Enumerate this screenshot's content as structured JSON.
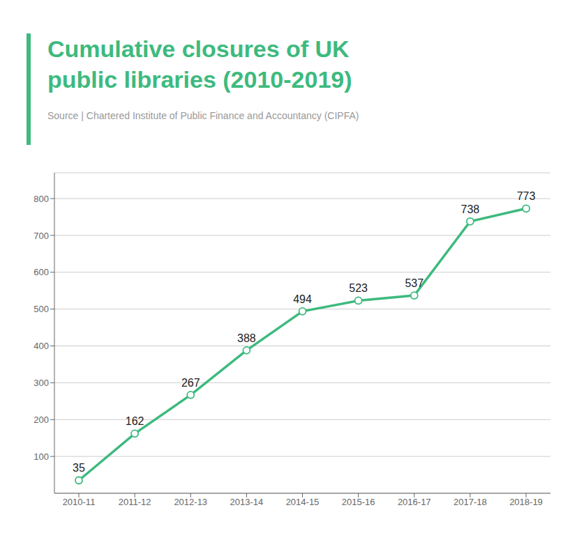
{
  "chart_data": {
    "type": "line",
    "title": "Cumulative closures of UK\npublic libraries (2010-2019)",
    "source": "Source | Chartered Institute of Public Finance and Accountancy (CIPFA)",
    "categories": [
      "2010-11",
      "2011-12",
      "2012-13",
      "2013-14",
      "2014-15",
      "2015-16",
      "2016-17",
      "2017-18",
      "2018-19"
    ],
    "values": [
      35,
      162,
      267,
      388,
      494,
      523,
      537,
      738,
      773
    ],
    "color": "#3dba7e",
    "marker": "circle",
    "ylim": [
      0,
      870
    ],
    "yticks": [
      100,
      200,
      300,
      400,
      500,
      600,
      700,
      800
    ],
    "grid": true,
    "data_labels": true
  }
}
